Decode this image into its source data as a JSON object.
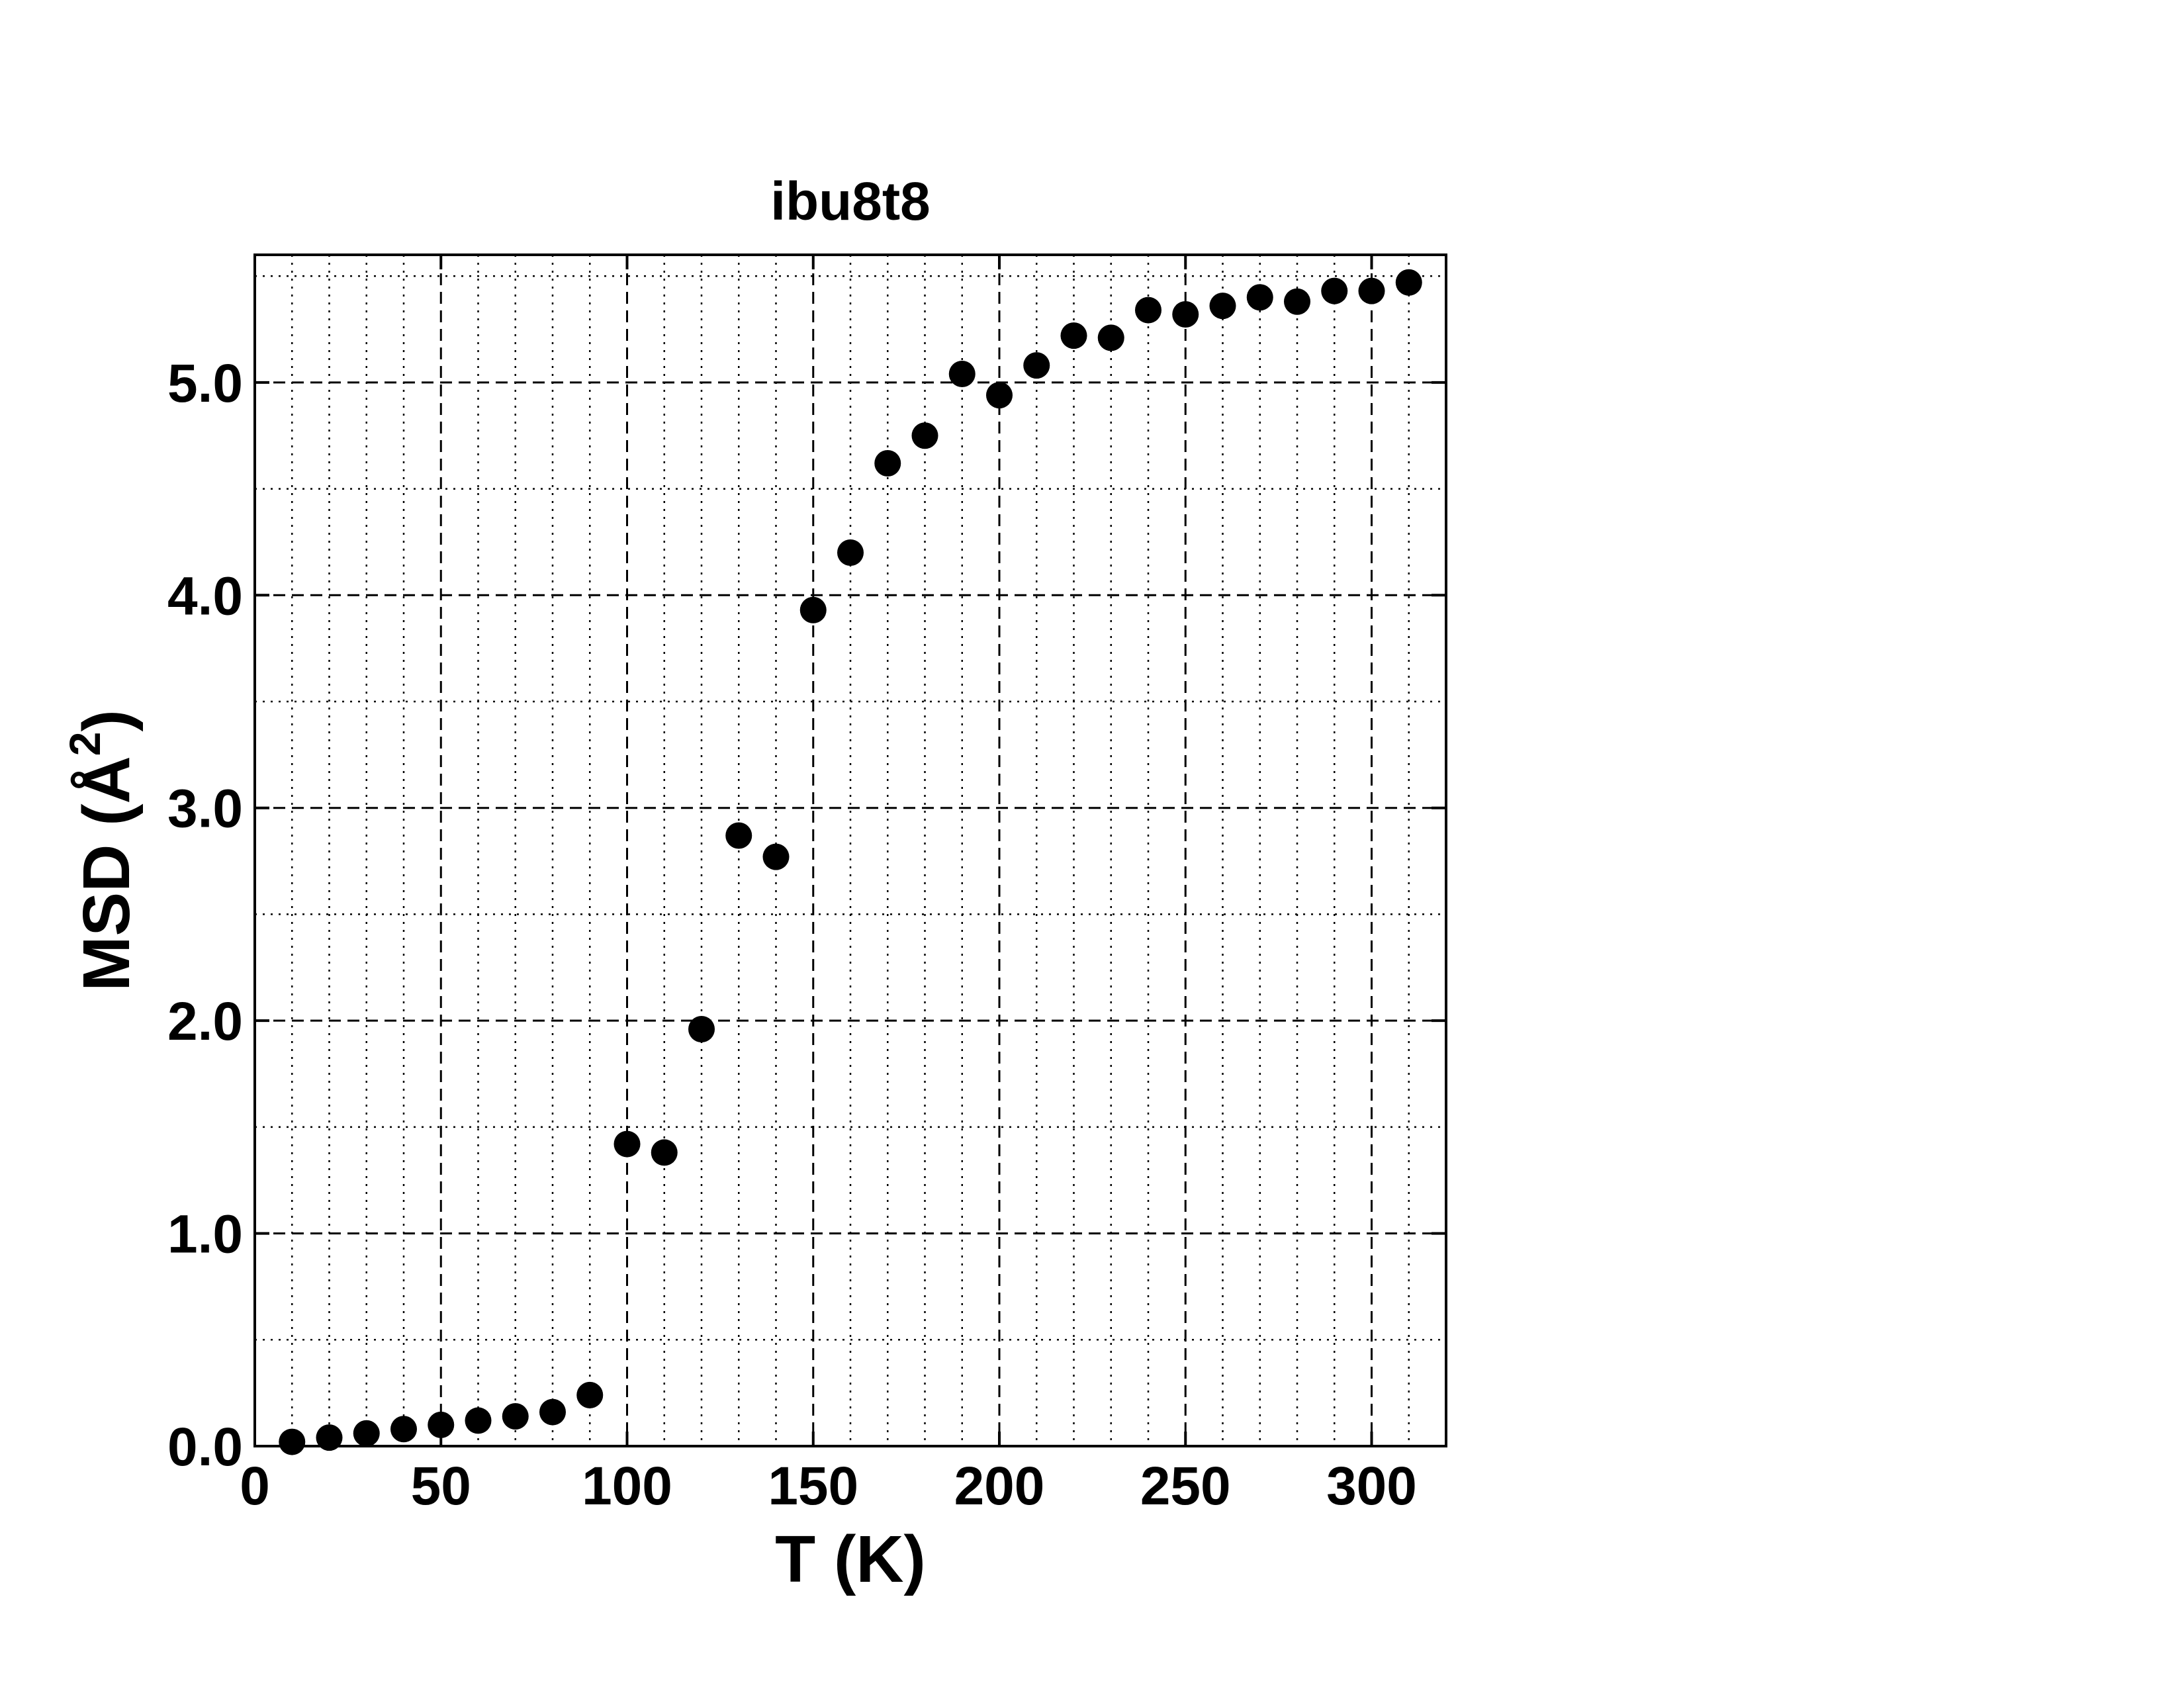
{
  "chart_data": {
    "type": "scatter",
    "title": "ibu8t8",
    "xlabel": "T (K)",
    "ylabel": {
      "base": "MSD (Å",
      "superscript": "2",
      "closing": ")"
    },
    "xlim": [
      0,
      320
    ],
    "ylim": [
      0,
      5.6
    ],
    "xticks": [
      {
        "value": 0,
        "label": "0"
      },
      {
        "value": 50,
        "label": "50"
      },
      {
        "value": 100,
        "label": "100"
      },
      {
        "value": 150,
        "label": "150"
      },
      {
        "value": 200,
        "label": "200"
      },
      {
        "value": 250,
        "label": "250"
      },
      {
        "value": 300,
        "label": "300"
      }
    ],
    "yticks": [
      {
        "value": 0,
        "label": "0.0"
      },
      {
        "value": 1,
        "label": "1.0"
      },
      {
        "value": 2,
        "label": "2.0"
      },
      {
        "value": 3,
        "label": "3.0"
      },
      {
        "value": 4,
        "label": "4.0"
      },
      {
        "value": 5,
        "label": "5.0"
      }
    ],
    "grid": true,
    "x_minor_step": 10,
    "y_minor_step": 0.5,
    "colors": {
      "marker": "#000000",
      "grid": "#000000",
      "axes": "#000000"
    },
    "series": [
      {
        "x": [
          10,
          20,
          30,
          40,
          50,
          60,
          70,
          80,
          90,
          100,
          110,
          120,
          130,
          140,
          150,
          160,
          170,
          180,
          190,
          200,
          210,
          220,
          230,
          240,
          250,
          260,
          270,
          280,
          290,
          300,
          310
        ],
        "y": [
          0.02,
          0.04,
          0.06,
          0.08,
          0.1,
          0.12,
          0.14,
          0.16,
          0.24,
          1.42,
          1.38,
          1.96,
          2.87,
          2.77,
          3.93,
          4.2,
          4.62,
          4.75,
          5.04,
          4.94,
          5.08,
          5.22,
          5.21,
          5.34,
          5.32,
          5.36,
          5.4,
          5.38,
          5.43,
          5.43,
          5.47
        ]
      }
    ]
  }
}
